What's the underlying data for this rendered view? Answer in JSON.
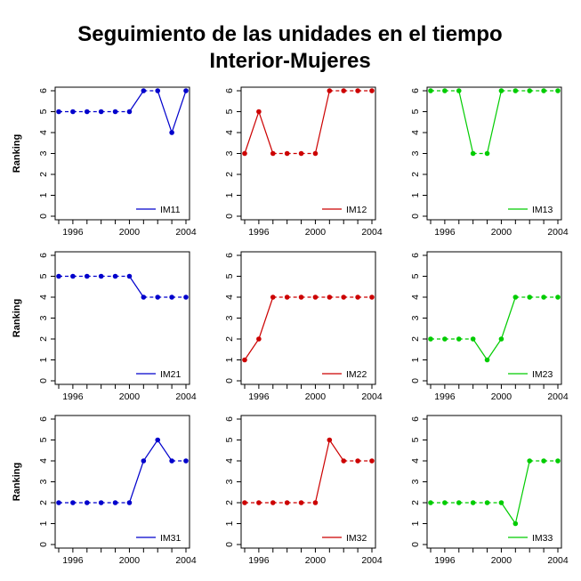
{
  "title_line1": "Seguimiento de las unidades en el tiempo",
  "title_line2": "Interior-Mujeres",
  "chart_data": {
    "type": "line",
    "layout": "3x3 grid of small multiples",
    "x": [
      1995,
      1996,
      1997,
      1998,
      1999,
      2000,
      2001,
      2002,
      2003,
      2004
    ],
    "x_ticks": [
      1996,
      2000,
      2004
    ],
    "y_ticks": [
      0,
      1,
      2,
      3,
      4,
      5,
      6
    ],
    "ylim": [
      0,
      6
    ],
    "xlim": [
      1995,
      2004
    ],
    "ylabel": "Ranking",
    "legend_position": "bottom-right",
    "panels": [
      {
        "name": "IM11",
        "color": "#0000cc",
        "values": [
          5,
          5,
          5,
          5,
          5,
          5,
          6,
          6,
          4,
          6
        ]
      },
      {
        "name": "IM12",
        "color": "#cc0000",
        "values": [
          3,
          5,
          3,
          3,
          3,
          3,
          6,
          6,
          6,
          6
        ]
      },
      {
        "name": "IM13",
        "color": "#00cc00",
        "values": [
          6,
          6,
          6,
          3,
          3,
          6,
          6,
          6,
          6,
          6
        ]
      },
      {
        "name": "IM21",
        "color": "#0000cc",
        "values": [
          5,
          5,
          5,
          5,
          5,
          5,
          4,
          4,
          4,
          4
        ]
      },
      {
        "name": "IM22",
        "color": "#cc0000",
        "values": [
          1,
          2,
          4,
          4,
          4,
          4,
          4,
          4,
          4,
          4
        ]
      },
      {
        "name": "IM23",
        "color": "#00cc00",
        "values": [
          2,
          2,
          2,
          2,
          1,
          2,
          4,
          4,
          4,
          4
        ]
      },
      {
        "name": "IM31",
        "color": "#0000cc",
        "values": [
          2,
          2,
          2,
          2,
          2,
          2,
          4,
          5,
          4,
          4
        ]
      },
      {
        "name": "IM32",
        "color": "#cc0000",
        "values": [
          2,
          2,
          2,
          2,
          2,
          2,
          5,
          4,
          4,
          4
        ]
      },
      {
        "name": "IM33",
        "color": "#00cc00",
        "values": [
          2,
          2,
          2,
          2,
          2,
          2,
          1,
          4,
          4,
          4
        ]
      }
    ]
  }
}
